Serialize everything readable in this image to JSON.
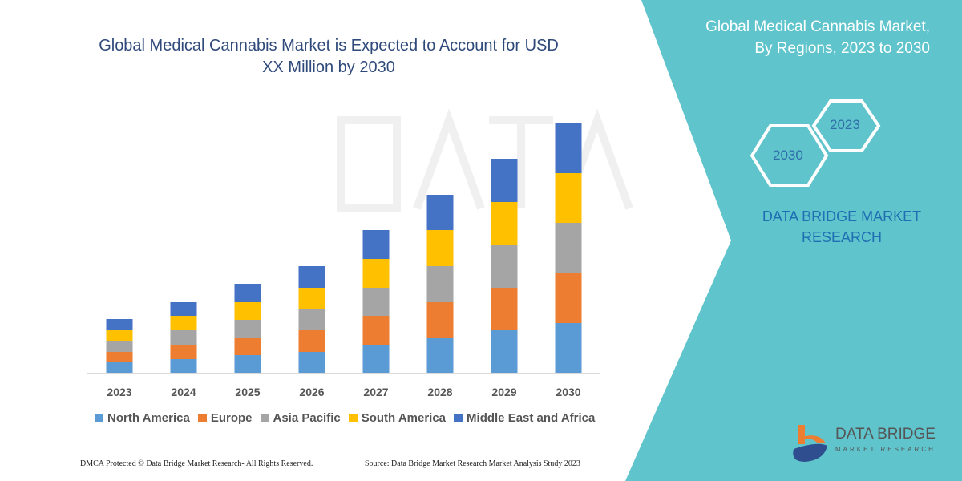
{
  "title": "Global Medical Cannabis Market is Expected to Account for USD XX Million by 2030",
  "side_panel": {
    "title": "Global Medical Cannabis Market, By Regions, 2023 to 2030",
    "hex_labels": [
      "2023",
      "2030"
    ],
    "brand": "DATA BRIDGE MARKET RESEARCH",
    "logo_text": "DATA BRIDGE",
    "logo_sub": "MARKET RESEARCH",
    "color": "#5fc4cc"
  },
  "watermark": "DATA BRIDGE MARKET RESEARCH",
  "footer": {
    "left": "DMCA Protected © Data Bridge Market Research-  All Rights Reserved.",
    "right": "Source:  Data Bridge Market Research  Market Analysis Study 2023"
  },
  "chart_data": {
    "type": "bar",
    "stacked": true,
    "title": "Global Medical Cannabis Market is Expected to Account for USD XX Million by 2030",
    "xlabel": "",
    "ylabel": "",
    "y_axis_shown": false,
    "grid": false,
    "legend_position": "bottom",
    "ylim": [
      0,
      320
    ],
    "categories": [
      "2023",
      "2024",
      "2025",
      "2026",
      "2027",
      "2028",
      "2029",
      "2030"
    ],
    "series": [
      {
        "name": "North America",
        "color": "#5b9bd5",
        "values": [
          13,
          17,
          22,
          26,
          35,
          44,
          53,
          62
        ]
      },
      {
        "name": "Europe",
        "color": "#ed7d31",
        "values": [
          13,
          18,
          22,
          27,
          36,
          44,
          53,
          62
        ]
      },
      {
        "name": "Asia Pacific",
        "color": "#a5a5a5",
        "values": [
          14,
          18,
          22,
          26,
          35,
          45,
          54,
          63
        ]
      },
      {
        "name": "South America",
        "color": "#ffc000",
        "values": [
          13,
          18,
          22,
          27,
          36,
          45,
          53,
          62
        ]
      },
      {
        "name": "Middle East and Africa",
        "color": "#4472c4",
        "values": [
          14,
          17,
          23,
          27,
          36,
          44,
          54,
          62
        ]
      }
    ]
  }
}
